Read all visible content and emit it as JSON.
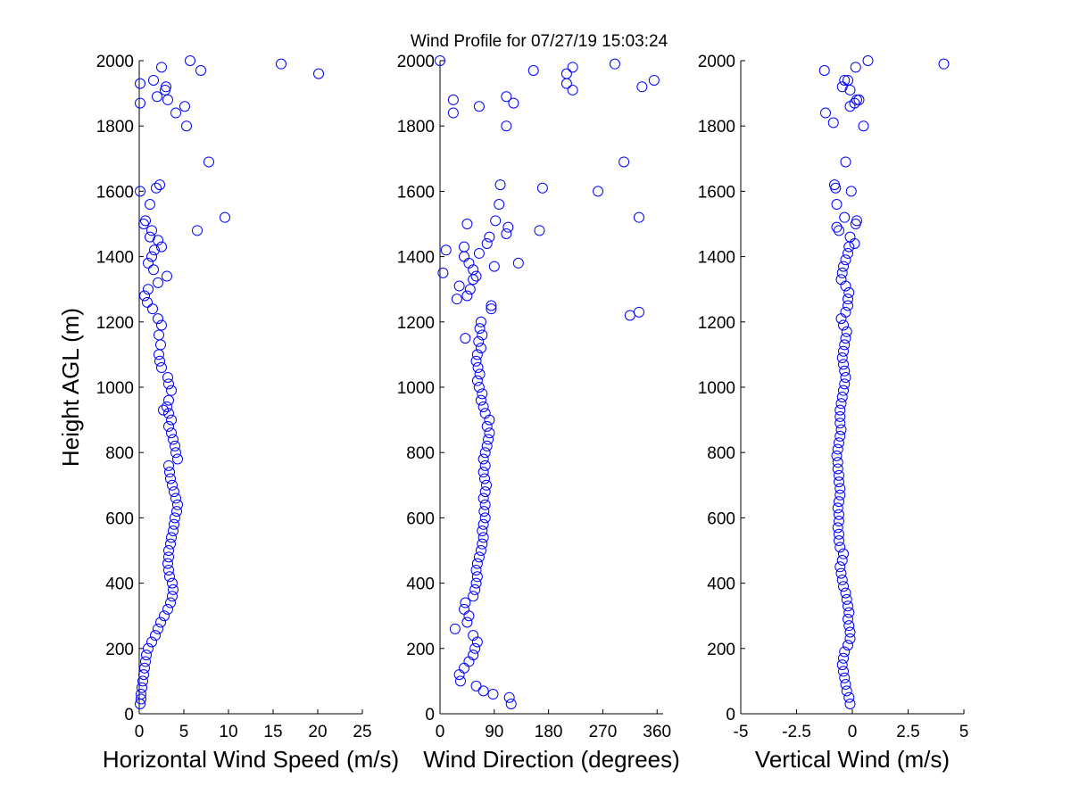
{
  "figure_title": "Wind Profile for  07/27/19 15:03:24",
  "marker_color": "#0000ff",
  "chart_data": [
    {
      "type": "scatter",
      "xlabel": "Horizontal Wind Speed (m/s)",
      "ylabel": "Height AGL (m)",
      "xlim": [
        0,
        25
      ],
      "ylim": [
        0,
        2000
      ],
      "xticks": [
        0,
        5,
        10,
        15,
        20,
        25
      ],
      "xtick_labels": [
        "0",
        "5",
        "10",
        "15",
        "20",
        "25"
      ],
      "yticks": [
        0,
        200,
        400,
        600,
        800,
        1000,
        1200,
        1400,
        1600,
        1800,
        2000
      ],
      "ytick_labels": [
        "0",
        "200",
        "400",
        "600",
        "800",
        "1000",
        "1200",
        "1400",
        "1600",
        "1800",
        "2000"
      ],
      "grid": false,
      "marker": "circle",
      "points": [
        [
          0.1,
          30
        ],
        [
          0.2,
          45
        ],
        [
          0.2,
          60
        ],
        [
          0.3,
          80
        ],
        [
          0.4,
          100
        ],
        [
          0.5,
          120
        ],
        [
          0.6,
          140
        ],
        [
          0.7,
          160
        ],
        [
          0.8,
          180
        ],
        [
          1.0,
          200
        ],
        [
          1.4,
          220
        ],
        [
          1.8,
          240
        ],
        [
          2.1,
          260
        ],
        [
          2.4,
          280
        ],
        [
          2.8,
          300
        ],
        [
          3.2,
          320
        ],
        [
          3.5,
          340
        ],
        [
          3.7,
          360
        ],
        [
          3.8,
          380
        ],
        [
          3.7,
          400
        ],
        [
          3.4,
          420
        ],
        [
          3.3,
          440
        ],
        [
          3.2,
          460
        ],
        [
          3.3,
          480
        ],
        [
          3.3,
          500
        ],
        [
          3.5,
          520
        ],
        [
          3.6,
          540
        ],
        [
          3.8,
          560
        ],
        [
          3.9,
          580
        ],
        [
          4.0,
          600
        ],
        [
          4.2,
          620
        ],
        [
          4.3,
          640
        ],
        [
          4.1,
          660
        ],
        [
          3.9,
          680
        ],
        [
          3.7,
          700
        ],
        [
          3.5,
          720
        ],
        [
          3.4,
          740
        ],
        [
          3.3,
          760
        ],
        [
          4.3,
          780
        ],
        [
          4.1,
          800
        ],
        [
          4.0,
          820
        ],
        [
          3.8,
          840
        ],
        [
          3.6,
          860
        ],
        [
          3.3,
          880
        ],
        [
          3.6,
          900
        ],
        [
          3.3,
          920
        ],
        [
          2.7,
          930
        ],
        [
          3.1,
          940
        ],
        [
          3.3,
          960
        ],
        [
          3.6,
          990
        ],
        [
          3.3,
          1010
        ],
        [
          3.2,
          1030
        ],
        [
          2.5,
          1060
        ],
        [
          2.3,
          1080
        ],
        [
          2.2,
          1100
        ],
        [
          2.4,
          1130
        ],
        [
          2.2,
          1160
        ],
        [
          2.5,
          1190
        ],
        [
          2.1,
          1210
        ],
        [
          1.5,
          1240
        ],
        [
          0.9,
          1260
        ],
        [
          0.6,
          1280
        ],
        [
          1.0,
          1300
        ],
        [
          2.1,
          1320
        ],
        [
          3.1,
          1340
        ],
        [
          1.6,
          1360
        ],
        [
          1.0,
          1380
        ],
        [
          1.4,
          1400
        ],
        [
          1.7,
          1420
        ],
        [
          2.5,
          1430
        ],
        [
          2.1,
          1450
        ],
        [
          1.2,
          1460
        ],
        [
          1.4,
          1480
        ],
        [
          0.5,
          1500
        ],
        [
          0.7,
          1510
        ],
        [
          1.9,
          1610
        ],
        [
          2.3,
          1620
        ],
        [
          0.1,
          1600
        ],
        [
          1.2,
          1560
        ],
        [
          6.5,
          1480
        ],
        [
          9.6,
          1520
        ],
        [
          7.8,
          1690
        ],
        [
          5.3,
          1800
        ],
        [
          4.1,
          1840
        ],
        [
          5.1,
          1860
        ],
        [
          0.1,
          1870
        ],
        [
          2.0,
          1890
        ],
        [
          3.2,
          1880
        ],
        [
          2.9,
          1910
        ],
        [
          3.0,
          1920
        ],
        [
          1.6,
          1940
        ],
        [
          0.1,
          1930
        ],
        [
          2.5,
          1980
        ],
        [
          5.7,
          2000
        ],
        [
          6.9,
          1970
        ],
        [
          15.9,
          1990
        ],
        [
          20.1,
          1960
        ]
      ]
    },
    {
      "type": "scatter",
      "xlabel": "Wind Direction (degrees)",
      "xlim": [
        0,
        370
      ],
      "ylim": [
        0,
        2000
      ],
      "xticks": [
        0,
        90,
        180,
        270,
        360
      ],
      "xtick_labels": [
        "0",
        "90",
        "180",
        "270",
        "360"
      ],
      "yticks": [
        0,
        200,
        400,
        600,
        800,
        1000,
        1200,
        1400,
        1600,
        1800,
        2000
      ],
      "ytick_labels": [
        "0",
        "200",
        "400",
        "600",
        "800",
        "1000",
        "1200",
        "1400",
        "1600",
        "1800",
        "2000"
      ],
      "grid": false,
      "marker": "circle",
      "points": [
        [
          118,
          30
        ],
        [
          115,
          50
        ],
        [
          88,
          60
        ],
        [
          72,
          70
        ],
        [
          60,
          85
        ],
        [
          34,
          100
        ],
        [
          32,
          120
        ],
        [
          40,
          140
        ],
        [
          48,
          160
        ],
        [
          55,
          180
        ],
        [
          58,
          200
        ],
        [
          62,
          220
        ],
        [
          55,
          240
        ],
        [
          25,
          260
        ],
        [
          45,
          280
        ],
        [
          48,
          300
        ],
        [
          40,
          320
        ],
        [
          42,
          340
        ],
        [
          55,
          360
        ],
        [
          58,
          380
        ],
        [
          60,
          400
        ],
        [
          62,
          420
        ],
        [
          60,
          440
        ],
        [
          62,
          460
        ],
        [
          65,
          480
        ],
        [
          68,
          500
        ],
        [
          70,
          520
        ],
        [
          72,
          540
        ],
        [
          70,
          560
        ],
        [
          72,
          580
        ],
        [
          75,
          600
        ],
        [
          73,
          620
        ],
        [
          75,
          640
        ],
        [
          72,
          660
        ],
        [
          75,
          680
        ],
        [
          77,
          700
        ],
        [
          74,
          720
        ],
        [
          72,
          740
        ],
        [
          75,
          760
        ],
        [
          72,
          780
        ],
        [
          75,
          800
        ],
        [
          78,
          820
        ],
        [
          80,
          840
        ],
        [
          82,
          860
        ],
        [
          78,
          880
        ],
        [
          82,
          900
        ],
        [
          75,
          920
        ],
        [
          72,
          940
        ],
        [
          68,
          960
        ],
        [
          70,
          980
        ],
        [
          65,
          1000
        ],
        [
          62,
          1020
        ],
        [
          66,
          1040
        ],
        [
          63,
          1060
        ],
        [
          60,
          1080
        ],
        [
          62,
          1100
        ],
        [
          68,
          1120
        ],
        [
          64,
          1140
        ],
        [
          70,
          1160
        ],
        [
          66,
          1180
        ],
        [
          68,
          1200
        ],
        [
          85,
          1240
        ],
        [
          85,
          1250
        ],
        [
          42,
          1150
        ],
        [
          45,
          1280
        ],
        [
          50,
          1300
        ],
        [
          32,
          1310
        ],
        [
          28,
          1270
        ],
        [
          55,
          1330
        ],
        [
          60,
          1340
        ],
        [
          55,
          1360
        ],
        [
          90,
          1370
        ],
        [
          48,
          1380
        ],
        [
          130,
          1380
        ],
        [
          40,
          1400
        ],
        [
          65,
          1410
        ],
        [
          10,
          1420
        ],
        [
          40,
          1430
        ],
        [
          78,
          1440
        ],
        [
          82,
          1460
        ],
        [
          110,
          1470
        ],
        [
          113,
          1490
        ],
        [
          45,
          1500
        ],
        [
          92,
          1510
        ],
        [
          165,
          1480
        ],
        [
          98,
          1560
        ],
        [
          100,
          1620
        ],
        [
          170,
          1610
        ],
        [
          262,
          1600
        ],
        [
          5,
          1350
        ],
        [
          315,
          1220
        ],
        [
          330,
          1230
        ],
        [
          330,
          1520
        ],
        [
          305,
          1690
        ],
        [
          110,
          1800
        ],
        [
          22,
          1840
        ],
        [
          65,
          1860
        ],
        [
          22,
          1880
        ],
        [
          110,
          1890
        ],
        [
          122,
          1870
        ],
        [
          220,
          1910
        ],
        [
          210,
          1930
        ],
        [
          335,
          1920
        ],
        [
          210,
          1960
        ],
        [
          355,
          1940
        ],
        [
          155,
          1970
        ],
        [
          220,
          1980
        ],
        [
          290,
          1990
        ],
        [
          0,
          2000
        ]
      ]
    },
    {
      "type": "scatter",
      "xlabel": "Vertical Wind (m/s)",
      "xlim": [
        -5,
        5
      ],
      "ylim": [
        0,
        2000
      ],
      "xticks": [
        -5,
        -2.5,
        0,
        2.5,
        5
      ],
      "xtick_labels": [
        "-5",
        "-2.5",
        "0",
        "2.5",
        "5"
      ],
      "yticks": [
        0,
        200,
        400,
        600,
        800,
        1000,
        1200,
        1400,
        1600,
        1800,
        2000
      ],
      "ytick_labels": [
        "0",
        "200",
        "400",
        "600",
        "800",
        "1000",
        "1200",
        "1400",
        "1600",
        "1800",
        "2000"
      ],
      "grid": false,
      "marker": "circle",
      "points": [
        [
          -0.1,
          30
        ],
        [
          -0.15,
          50
        ],
        [
          -0.25,
          70
        ],
        [
          -0.3,
          90
        ],
        [
          -0.35,
          110
        ],
        [
          -0.4,
          130
        ],
        [
          -0.45,
          150
        ],
        [
          -0.4,
          170
        ],
        [
          -0.35,
          190
        ],
        [
          -0.2,
          210
        ],
        [
          -0.1,
          230
        ],
        [
          -0.1,
          250
        ],
        [
          -0.15,
          270
        ],
        [
          -0.2,
          290
        ],
        [
          -0.15,
          310
        ],
        [
          -0.2,
          330
        ],
        [
          -0.25,
          350
        ],
        [
          -0.3,
          370
        ],
        [
          -0.4,
          390
        ],
        [
          -0.45,
          410
        ],
        [
          -0.5,
          430
        ],
        [
          -0.55,
          450
        ],
        [
          -0.45,
          470
        ],
        [
          -0.4,
          490
        ],
        [
          -0.55,
          510
        ],
        [
          -0.6,
          530
        ],
        [
          -0.6,
          550
        ],
        [
          -0.65,
          570
        ],
        [
          -0.6,
          590
        ],
        [
          -0.6,
          610
        ],
        [
          -0.65,
          630
        ],
        [
          -0.6,
          650
        ],
        [
          -0.55,
          670
        ],
        [
          -0.55,
          690
        ],
        [
          -0.6,
          710
        ],
        [
          -0.6,
          730
        ],
        [
          -0.65,
          750
        ],
        [
          -0.65,
          770
        ],
        [
          -0.7,
          790
        ],
        [
          -0.65,
          810
        ],
        [
          -0.6,
          830
        ],
        [
          -0.55,
          850
        ],
        [
          -0.5,
          870
        ],
        [
          -0.55,
          890
        ],
        [
          -0.55,
          910
        ],
        [
          -0.55,
          930
        ],
        [
          -0.5,
          950
        ],
        [
          -0.45,
          970
        ],
        [
          -0.4,
          990
        ],
        [
          -0.35,
          1010
        ],
        [
          -0.3,
          1030
        ],
        [
          -0.35,
          1050
        ],
        [
          -0.4,
          1070
        ],
        [
          -0.45,
          1090
        ],
        [
          -0.4,
          1110
        ],
        [
          -0.35,
          1130
        ],
        [
          -0.3,
          1150
        ],
        [
          -0.25,
          1170
        ],
        [
          -0.4,
          1190
        ],
        [
          -0.5,
          1210
        ],
        [
          -0.3,
          1230
        ],
        [
          -0.2,
          1250
        ],
        [
          -0.2,
          1270
        ],
        [
          -0.15,
          1290
        ],
        [
          -0.3,
          1310
        ],
        [
          -0.5,
          1330
        ],
        [
          -0.45,
          1350
        ],
        [
          -0.4,
          1370
        ],
        [
          -0.3,
          1390
        ],
        [
          -0.2,
          1410
        ],
        [
          -0.15,
          1430
        ],
        [
          0.1,
          1440
        ],
        [
          -0.1,
          1460
        ],
        [
          -0.6,
          1480
        ],
        [
          -0.7,
          1490
        ],
        [
          0.15,
          1500
        ],
        [
          0.2,
          1510
        ],
        [
          -0.35,
          1520
        ],
        [
          -0.7,
          1560
        ],
        [
          -0.05,
          1600
        ],
        [
          -0.75,
          1610
        ],
        [
          -0.8,
          1620
        ],
        [
          -0.3,
          1690
        ],
        [
          0.5,
          1800
        ],
        [
          -0.85,
          1810
        ],
        [
          -1.2,
          1840
        ],
        [
          -0.1,
          1860
        ],
        [
          0.1,
          1870
        ],
        [
          0.2,
          1880
        ],
        [
          0.3,
          1880
        ],
        [
          -0.1,
          1910
        ],
        [
          -0.45,
          1920
        ],
        [
          -0.2,
          1940
        ],
        [
          -0.35,
          1940
        ],
        [
          -1.25,
          1970
        ],
        [
          0.15,
          1980
        ],
        [
          0.7,
          2000
        ],
        [
          4.1,
          1990
        ]
      ]
    }
  ]
}
